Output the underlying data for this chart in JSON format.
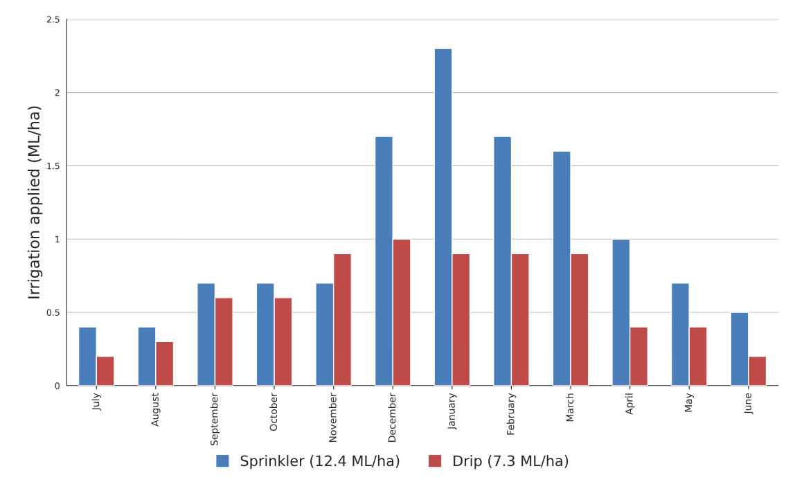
{
  "chart_data": {
    "type": "bar",
    "ylabel": "Irrigation applied (ML/ha)",
    "categories": [
      "July",
      "August",
      "September",
      "October",
      "November",
      "December",
      "January",
      "February",
      "March",
      "April",
      "May",
      "June"
    ],
    "series": [
      {
        "name": "Sprinkler (12.4 ML/ha)",
        "color": "#4a7ebb",
        "values": [
          0.4,
          0.4,
          0.7,
          0.7,
          0.7,
          1.7,
          2.3,
          1.7,
          1.6,
          1.0,
          0.7,
          0.5
        ]
      },
      {
        "name": "Drip (7.3 ML/ha)",
        "color": "#be4b48",
        "values": [
          0.2,
          0.3,
          0.6,
          0.6,
          0.9,
          1.0,
          0.9,
          0.9,
          0.9,
          0.4,
          0.4,
          0.2
        ]
      }
    ],
    "ylim": [
      0,
      2.5
    ],
    "yticks": [
      0,
      0.5,
      1,
      1.5,
      2,
      2.5
    ],
    "grid": "y",
    "legend": "bottom"
  }
}
